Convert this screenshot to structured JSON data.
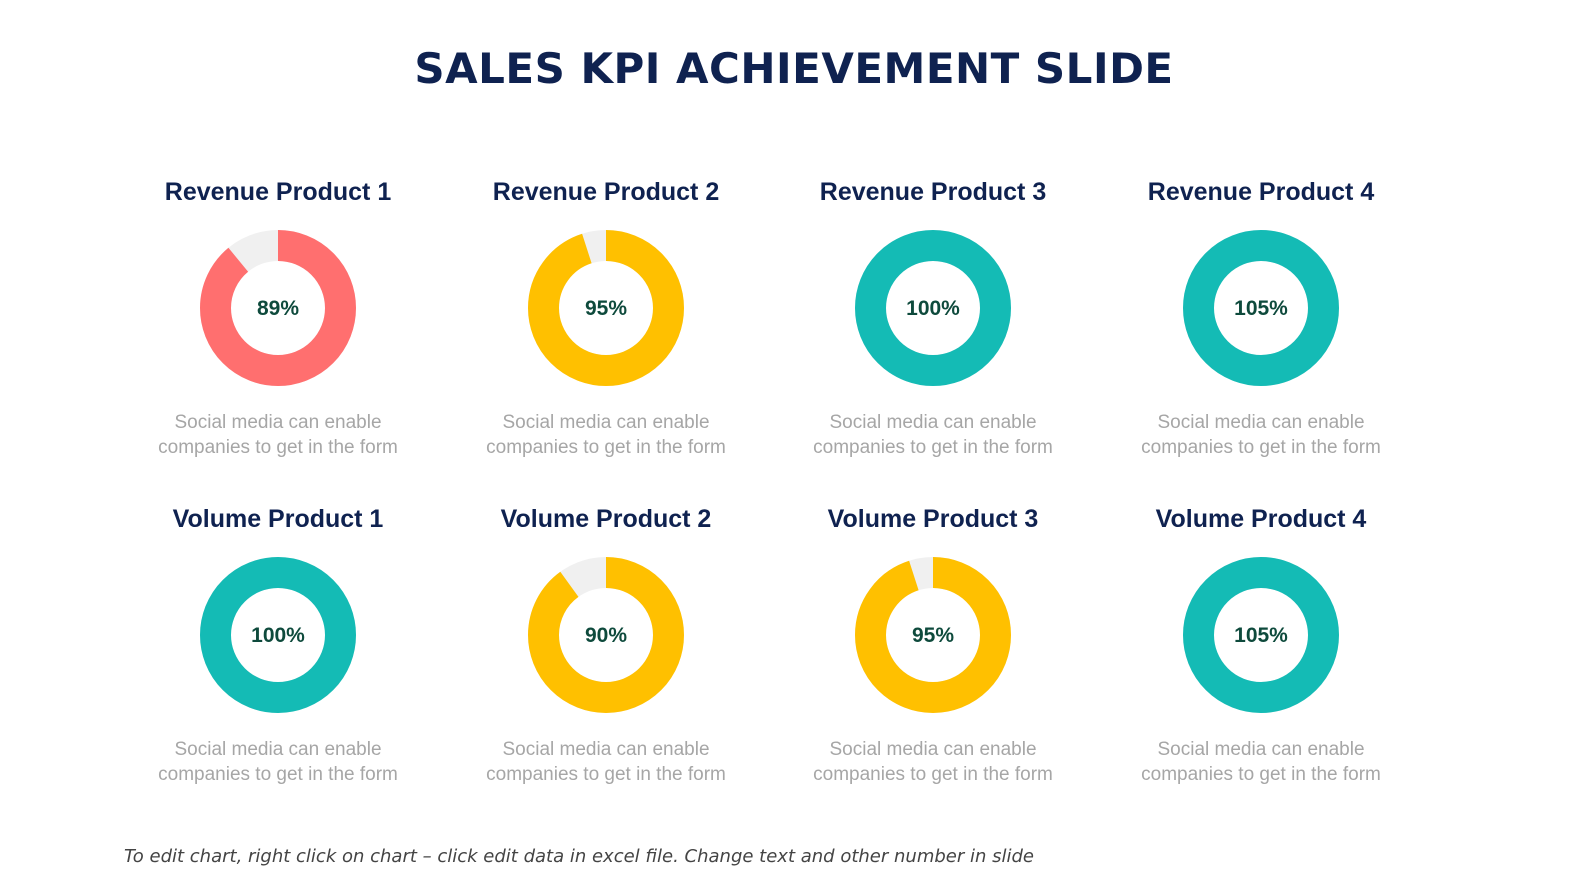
{
  "title": "SALES KPI ACHIEVEMENT SLIDE",
  "footnote": "To edit chart, right click on chart – click edit data in excel file. Change text and other number in slide",
  "colors": {
    "title": "#0f2250",
    "red": "#ff6f6f",
    "yellow": "#ffc000",
    "teal": "#14bbb5",
    "track": "#f0f0f0",
    "value_text": "#0e4a3c",
    "description": "#a6a6a6"
  },
  "chart_data": [
    {
      "type": "pie",
      "title": "Revenue Product 1",
      "value": 89,
      "label": "89%",
      "color": "#ff6f6f",
      "description": [
        "Social media can enable",
        "companies to get in the form"
      ]
    },
    {
      "type": "pie",
      "title": "Revenue Product 2",
      "value": 95,
      "label": "95%",
      "color": "#ffc000",
      "description": [
        "Social media can enable",
        "companies to get in the form"
      ]
    },
    {
      "type": "pie",
      "title": "Revenue Product 3",
      "value": 100,
      "label": "100%",
      "color": "#14bbb5",
      "description": [
        "Social media can enable",
        "companies to get in the form"
      ]
    },
    {
      "type": "pie",
      "title": "Revenue Product 4",
      "value": 105,
      "label": "105%",
      "color": "#14bbb5",
      "description": [
        "Social media can enable",
        "companies to get in the form"
      ]
    },
    {
      "type": "pie",
      "title": "Volume Product 1",
      "value": 100,
      "label": "100%",
      "color": "#14bbb5",
      "description": [
        "Social media can enable",
        "companies to get in the form"
      ]
    },
    {
      "type": "pie",
      "title": "Volume Product 2",
      "value": 90,
      "label": "90%",
      "color": "#ffc000",
      "description": [
        "Social media can enable",
        "companies to get in the form"
      ]
    },
    {
      "type": "pie",
      "title": "Volume Product 3",
      "value": 95,
      "label": "95%",
      "color": "#ffc000",
      "description": [
        "Social media can enable",
        "companies to get in the form"
      ]
    },
    {
      "type": "pie",
      "title": "Volume Product 4",
      "value": 105,
      "label": "105%",
      "color": "#14bbb5",
      "description": [
        "Social media can enable",
        "companies to get in the form"
      ]
    }
  ]
}
